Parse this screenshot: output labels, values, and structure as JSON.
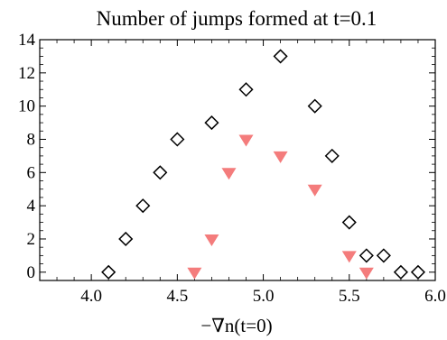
{
  "chart_data": {
    "type": "scatter",
    "title": "Number of jumps formed at t=0.1",
    "xlabel": "−∇n(t=0)",
    "ylabel": "",
    "xlim": [
      3.7,
      6.0
    ],
    "ylim": [
      -0.5,
      14
    ],
    "x_ticks": [
      4.0,
      4.5,
      5.0,
      5.5,
      6.0
    ],
    "x_tick_labels": [
      "4.0",
      "4.5",
      "5.0",
      "5.5",
      "6.0"
    ],
    "y_ticks": [
      0,
      2,
      4,
      6,
      8,
      10,
      12,
      14
    ],
    "y_tick_labels": [
      "0",
      "2",
      "4",
      "6",
      "8",
      "10",
      "12",
      "14"
    ],
    "grid": false,
    "legend": "none",
    "series": [
      {
        "marker": "diamond-open",
        "color": "#000000",
        "points": [
          [
            4.1,
            0
          ],
          [
            4.2,
            2
          ],
          [
            4.3,
            4
          ],
          [
            4.4,
            6
          ],
          [
            4.5,
            8
          ],
          [
            4.7,
            9
          ],
          [
            4.9,
            11
          ],
          [
            5.1,
            13
          ],
          [
            5.3,
            10
          ],
          [
            5.4,
            7
          ],
          [
            5.5,
            3
          ],
          [
            5.6,
            1
          ],
          [
            5.7,
            1
          ],
          [
            5.8,
            0
          ],
          [
            5.9,
            0
          ]
        ]
      },
      {
        "marker": "triangle-down-filled",
        "color": "#f47c7c",
        "points": [
          [
            4.6,
            0
          ],
          [
            4.7,
            2
          ],
          [
            4.8,
            6
          ],
          [
            4.9,
            8
          ],
          [
            5.1,
            7
          ],
          [
            5.3,
            5
          ],
          [
            5.5,
            1
          ],
          [
            5.6,
            0
          ]
        ]
      }
    ]
  }
}
